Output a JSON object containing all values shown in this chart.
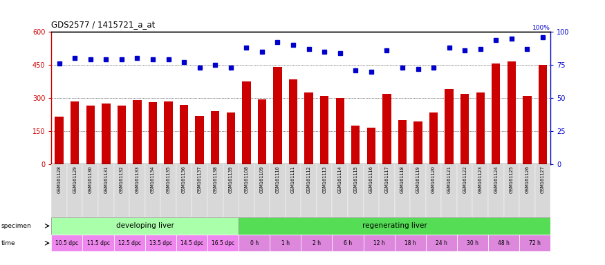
{
  "title": "GDS2577 / 1415721_a_at",
  "gsm_labels": [
    "GSM161128",
    "GSM161129",
    "GSM161130",
    "GSM161131",
    "GSM161132",
    "GSM161133",
    "GSM161134",
    "GSM161135",
    "GSM161136",
    "GSM161137",
    "GSM161138",
    "GSM161139",
    "GSM161108",
    "GSM161109",
    "GSM161110",
    "GSM161111",
    "GSM161112",
    "GSM161113",
    "GSM161114",
    "GSM161115",
    "GSM161116",
    "GSM161117",
    "GSM161118",
    "GSM161119",
    "GSM161120",
    "GSM161121",
    "GSM161122",
    "GSM161123",
    "GSM161124",
    "GSM161125",
    "GSM161126",
    "GSM161127"
  ],
  "bar_values": [
    215,
    285,
    265,
    275,
    265,
    290,
    280,
    285,
    270,
    220,
    240,
    235,
    375,
    295,
    440,
    385,
    325,
    310,
    300,
    175,
    165,
    320,
    200,
    195,
    235,
    340,
    320,
    325,
    455,
    465,
    310,
    450
  ],
  "dot_values": [
    76,
    80,
    79,
    79,
    79,
    80,
    79,
    79,
    77,
    73,
    75,
    73,
    88,
    85,
    92,
    90,
    87,
    85,
    84,
    71,
    70,
    86,
    73,
    72,
    73,
    88,
    86,
    87,
    94,
    95,
    87,
    96
  ],
  "bar_color": "#cc0000",
  "dot_color": "#0000cc",
  "ylim_left": [
    0,
    600
  ],
  "ylim_right": [
    0,
    100
  ],
  "yticks_left": [
    0,
    150,
    300,
    450,
    600
  ],
  "yticks_right": [
    0,
    25,
    50,
    75,
    100
  ],
  "grid_values": [
    150,
    300,
    450
  ],
  "bg_color": "#ffffff",
  "chart_border_color": "#000000",
  "developing_color": "#aaffaa",
  "regenerating_color": "#55dd55",
  "time_dev_color": "#ee88ee",
  "time_reg_color": "#dd88dd",
  "time_labels": [
    {
      "label": "10.5 dpc",
      "start": 0,
      "end": 2,
      "group": "dev"
    },
    {
      "label": "11.5 dpc",
      "start": 2,
      "end": 4,
      "group": "dev"
    },
    {
      "label": "12.5 dpc",
      "start": 4,
      "end": 6,
      "group": "dev"
    },
    {
      "label": "13.5 dpc",
      "start": 6,
      "end": 8,
      "group": "dev"
    },
    {
      "label": "14.5 dpc",
      "start": 8,
      "end": 10,
      "group": "dev"
    },
    {
      "label": "16.5 dpc",
      "start": 10,
      "end": 12,
      "group": "dev"
    },
    {
      "label": "0 h",
      "start": 12,
      "end": 14,
      "group": "reg"
    },
    {
      "label": "1 h",
      "start": 14,
      "end": 16,
      "group": "reg"
    },
    {
      "label": "2 h",
      "start": 16,
      "end": 18,
      "group": "reg"
    },
    {
      "label": "6 h",
      "start": 18,
      "end": 20,
      "group": "reg"
    },
    {
      "label": "12 h",
      "start": 20,
      "end": 22,
      "group": "reg"
    },
    {
      "label": "18 h",
      "start": 22,
      "end": 24,
      "group": "reg"
    },
    {
      "label": "24 h",
      "start": 24,
      "end": 26,
      "group": "reg"
    },
    {
      "label": "30 h",
      "start": 26,
      "end": 28,
      "group": "reg"
    },
    {
      "label": "48 h",
      "start": 28,
      "end": 30,
      "group": "reg"
    },
    {
      "label": "72 h",
      "start": 30,
      "end": 32,
      "group": "reg"
    }
  ]
}
